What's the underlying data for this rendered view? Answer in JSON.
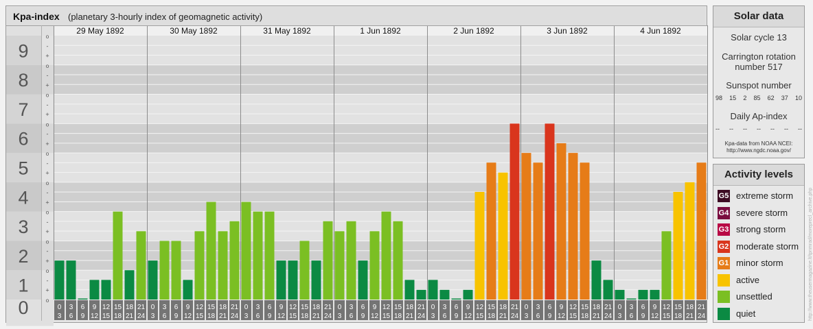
{
  "header": {
    "title": "Kpa-index",
    "subtitle": "(planetary 3-hourly index of geomagnetic activity)"
  },
  "chart_data": {
    "type": "bar",
    "title": "Kpa-index",
    "subtitle": "(planetary 3-hourly index of geomagnetic activity)",
    "ylim": [
      0,
      9
    ],
    "y_ticks": [
      "0",
      "1",
      "2",
      "3",
      "4",
      "5",
      "6",
      "7",
      "8",
      "9"
    ],
    "y_minor_ticks": [
      "o",
      "+",
      "-"
    ],
    "days": [
      "29 May 1892",
      "30 May 1892",
      "31 May 1892",
      "1 Jun 1892",
      "2 Jun 1892",
      "3 Jun 1892",
      "4 Jun 1892"
    ],
    "hour_start": [
      "0",
      "3",
      "6",
      "9",
      "12",
      "15",
      "18",
      "21"
    ],
    "hour_end": [
      "3",
      "6",
      "9",
      "12",
      "15",
      "18",
      "21",
      "24"
    ],
    "values": [
      1.33,
      1.33,
      0,
      0.67,
      0.67,
      3,
      1,
      2.33,
      1.33,
      2,
      2,
      0.67,
      2.33,
      3.33,
      2.33,
      2.67,
      3.33,
      3,
      3,
      1.33,
      1.33,
      2,
      1.33,
      2.67,
      2.33,
      2.67,
      1.33,
      2.33,
      3,
      2.67,
      0.67,
      0.33,
      0.67,
      0.33,
      0,
      0.33,
      3.67,
      4.67,
      4.33,
      6,
      5,
      4.67,
      6,
      5.33,
      5,
      4.67,
      1.33,
      0.67,
      0.33,
      0,
      0.33,
      0.33,
      2.33,
      3.67,
      4,
      4.67
    ],
    "colors": {
      "quiet": "#0b8a43",
      "unsettled": "#7bbf23",
      "active": "#f8c300",
      "minor": "#e67c18",
      "moderate": "#d9351d",
      "strong": "#b80a45",
      "severe": "#7a0b3f",
      "extreme": "#3d0b23"
    }
  },
  "solar": {
    "heading": "Solar data",
    "cycle": "Solar cycle 13",
    "carrington": "Carrington rotation number 517",
    "sunspot_label": "Sunspot number",
    "sunspots": [
      "98",
      "15",
      "2",
      "85",
      "62",
      "37",
      "10"
    ],
    "ap_label": "Daily Ap-index",
    "ap_values": [
      "--",
      "--",
      "--",
      "--",
      "--",
      "--",
      "--"
    ],
    "source_line1": "Kpa-data from NOAA NCEI:",
    "source_line2": "http://www.ngdc.noaa.gov/"
  },
  "levels": {
    "heading": "Activity levels",
    "items": [
      {
        "badge": "G5",
        "label": "extreme storm",
        "color": "#3d0b23"
      },
      {
        "badge": "G4",
        "label": "severe storm",
        "color": "#7a0b3f"
      },
      {
        "badge": "G3",
        "label": "strong storm",
        "color": "#b80a45"
      },
      {
        "badge": "G2",
        "label": "moderate storm",
        "color": "#d9351d"
      },
      {
        "badge": "G1",
        "label": "minor storm",
        "color": "#e67c18"
      },
      {
        "badge": "",
        "label": "active",
        "color": "#f8c300"
      },
      {
        "badge": "",
        "label": "unsettled",
        "color": "#7bbf23"
      },
      {
        "badge": "",
        "label": "quiet",
        "color": "#0b8a43"
      }
    ]
  },
  "watermark": "http://www.theusermagazine.lt/tpnmrad/moreprecl_archive.php"
}
